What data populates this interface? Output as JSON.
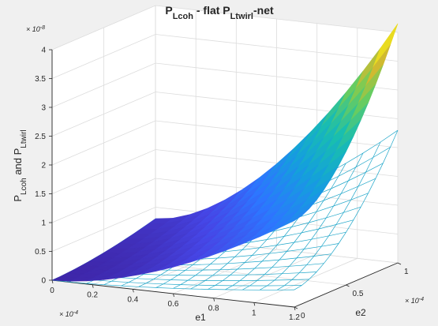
{
  "chart_data": {
    "type": "surface",
    "title": {
      "prefix": "P",
      "prefix_sub": "Lcoh",
      "middle": " - flat P",
      "middle_sub": "Ltwirl",
      "suffix": "-net"
    },
    "zlabel": {
      "p1": "P",
      "p1_sub": "Lcoh",
      "mid": " and P",
      "p2_sub": "Ltwirl"
    },
    "xlabel": "e1",
    "ylabel": "e2",
    "x_exponent": "× 10",
    "x_exponent_power": "-4",
    "y_exponent": "× 10",
    "y_exponent_power": "-4",
    "z_exponent": "× 10",
    "z_exponent_power": "-8",
    "xlim": [
      0,
      1.2
    ],
    "ylim": [
      0,
      1
    ],
    "zlim": [
      0,
      4
    ],
    "x_ticks": [
      "0",
      "0.2",
      "0.4",
      "0.6",
      "0.8",
      "1",
      "1.2"
    ],
    "y_ticks": [
      "0",
      "0.5",
      "1"
    ],
    "z_ticks": [
      "0",
      "0.5",
      "1",
      "1.5",
      "2",
      "2.5",
      "3",
      "3.5",
      "4"
    ],
    "grid": true,
    "series": [
      {
        "style": "surface",
        "colormap": "parula",
        "z_at_corners": {
          "origin": 0,
          "x_max": 1.5,
          "y_max": 0.3,
          "x_max_y_max": 4.15
        }
      },
      {
        "style": "mesh",
        "color": "#1fa6c9",
        "z_at_corners": {
          "origin": 0,
          "x_max": 0.3,
          "y_max": 0.3,
          "x_max_y_max": 2.3
        }
      }
    ]
  }
}
